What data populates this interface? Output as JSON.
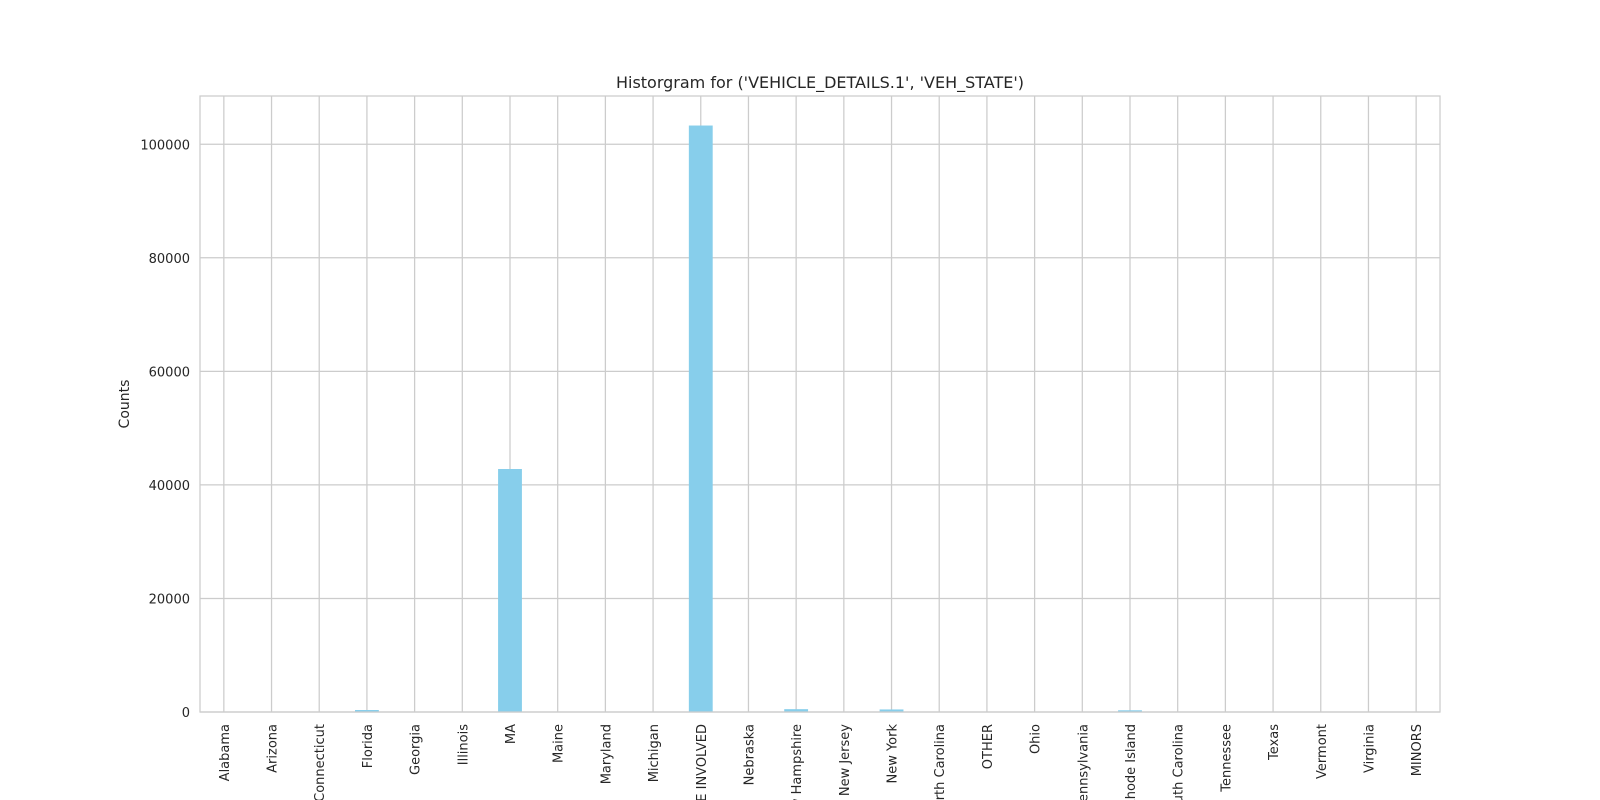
{
  "chart_data": {
    "type": "bar",
    "title": "Historgram for ('VEHICLE_DETAILS.1', 'VEH_STATE')",
    "xlabel": "",
    "ylabel": "Counts",
    "ylim": [
      0,
      108500
    ],
    "yticks": [
      0,
      20000,
      40000,
      60000,
      80000,
      100000
    ],
    "grid": true,
    "bar_color": "#87ceeb",
    "categories": [
      "Alabama",
      "Arizona",
      "Connecticut",
      "Florida",
      "Georgia",
      "Illinois",
      "MA",
      "Maine",
      "Maryland",
      "Michigan",
      "NONE INVOLVED",
      "Nebraska",
      "New Hampshire",
      "New Jersey",
      "New York",
      "North Carolina",
      "OTHER",
      "Ohio",
      "Pennsylvania",
      "Rhode Island",
      "South Carolina",
      "Tennessee",
      "Texas",
      "Vermont",
      "Virginia",
      "MINORS"
    ],
    "values": [
      10,
      10,
      40,
      350,
      10,
      10,
      42800,
      60,
      20,
      10,
      103300,
      10,
      500,
      60,
      450,
      10,
      10,
      10,
      20,
      300,
      10,
      10,
      10,
      40,
      10,
      10
    ]
  }
}
